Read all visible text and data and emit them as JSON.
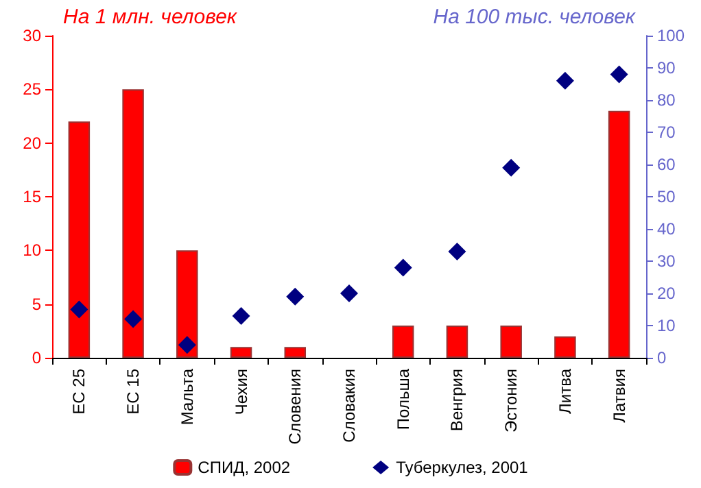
{
  "chart_data": {
    "type": "bar",
    "categories": [
      "ЕС 25",
      "ЕС 15",
      "Мальта",
      "Чехия",
      "Словения",
      "Словакия",
      "Польша",
      "Венгрия",
      "Эстония",
      "Литва",
      "Латвия"
    ],
    "series": [
      {
        "name": "СПИД, 2002",
        "color": "#ff0000",
        "values": [
          22,
          25,
          10,
          1,
          1,
          null,
          3,
          3,
          3,
          2,
          23
        ]
      },
      {
        "name": "Туберкулез, 2001",
        "type": "scatter",
        "axis": "y2",
        "marker": "diamond",
        "color": "#000080",
        "x": [
          "ЕС 25",
          "ЕС 15",
          "Мальта",
          "Чехия",
          "Словения",
          "Словакия",
          "Польша",
          "Венгрия",
          "Эстония",
          "Литва",
          "Латвия"
        ],
        "values": [
          15,
          12,
          4,
          13,
          19,
          20,
          28,
          33,
          59,
          86,
          88
        ]
      }
    ],
    "ylabel": "На 1 млн. человек",
    "y2label": "На 100 тыс. человек",
    "ylim": [
      0,
      30
    ],
    "yticks": [
      0,
      5,
      10,
      15,
      20,
      25,
      30
    ],
    "y2lim": [
      0,
      100
    ],
    "y2ticks": [
      0,
      10,
      20,
      30,
      40,
      50,
      60,
      70,
      80,
      90,
      100
    ],
    "grid": false,
    "legend": "bottom"
  }
}
